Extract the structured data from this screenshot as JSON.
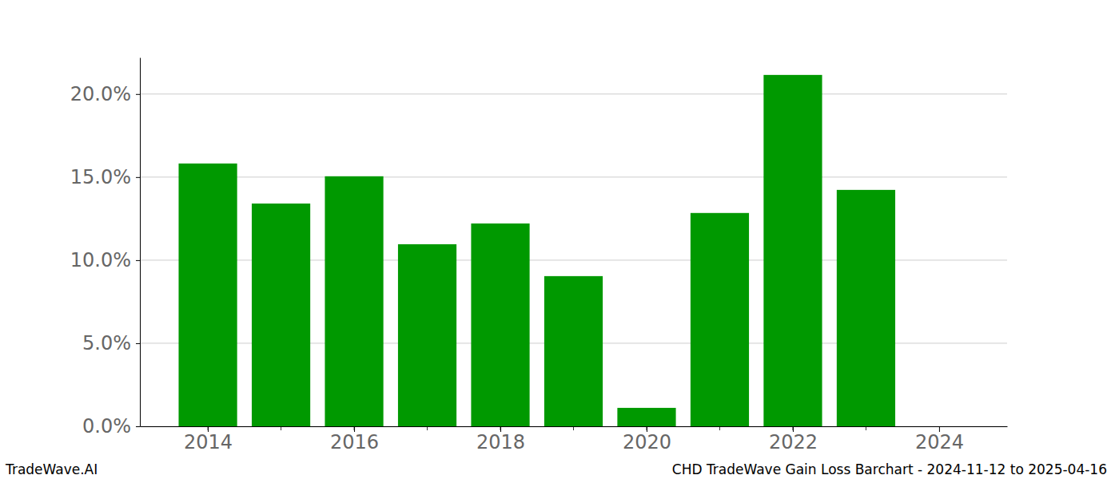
{
  "chart_data": {
    "type": "bar",
    "title": "CHD TradeWave Gain Loss Barchart - 2024-11-12 to 2025-04-16",
    "annotations": [
      "TradeWave.AI"
    ],
    "x": [
      2014,
      2015,
      2016,
      2017,
      2018,
      2019,
      2020,
      2021,
      2022,
      2023
    ],
    "values": [
      15.82,
      13.41,
      15.05,
      10.96,
      12.21,
      9.04,
      1.11,
      12.84,
      21.15,
      14.23
    ],
    "color": "#009900",
    "xlim": [
      2013.07,
      2024.93
    ],
    "xticks": [
      2014,
      2016,
      2018,
      2020,
      2022,
      2024
    ],
    "ylim": [
      0,
      22.2
    ],
    "yticks": [
      {
        "value": 0,
        "label": "0.0%"
      },
      {
        "value": 5,
        "label": "5.0%"
      },
      {
        "value": 10,
        "label": "10.0%"
      },
      {
        "value": 15,
        "label": "15.0%"
      },
      {
        "value": 20,
        "label": "20.0%"
      }
    ],
    "grid": true
  }
}
